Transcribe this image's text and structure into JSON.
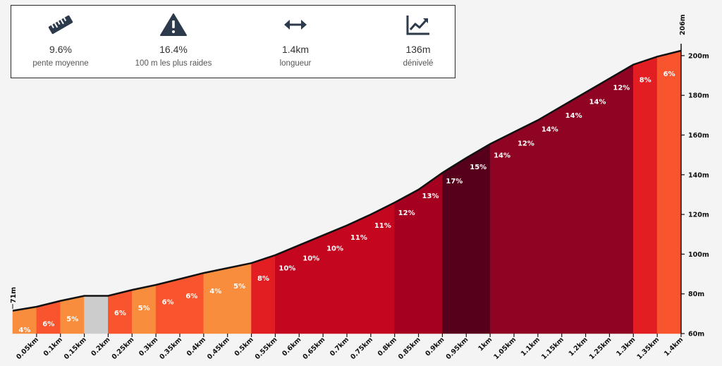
{
  "stats": [
    {
      "icon": "ruler-icon",
      "value": "9.6%",
      "label": "pente moyenne"
    },
    {
      "icon": "warning-icon",
      "value": "16.4%",
      "label": "100 m les plus raides"
    },
    {
      "icon": "horizontal-arrows-icon",
      "value": "1.4km",
      "label": "longueur"
    },
    {
      "icon": "trend-chart-icon",
      "value": "136m",
      "label": "dénivelé"
    }
  ],
  "chart_data": {
    "type": "area",
    "xlim": [
      0,
      1.4
    ],
    "ylim": [
      60,
      206
    ],
    "start_label": "71m",
    "end_label": "206m",
    "yticks": [
      {
        "value": 60,
        "label": "60m"
      },
      {
        "value": 80,
        "label": "80m"
      },
      {
        "value": 100,
        "label": "100m"
      },
      {
        "value": 120,
        "label": "120m"
      },
      {
        "value": 140,
        "label": "140m"
      },
      {
        "value": 160,
        "label": "160m"
      },
      {
        "value": 180,
        "label": "180m"
      },
      {
        "value": 200,
        "label": "200m"
      }
    ],
    "xticks": [
      "0.05km",
      "0.1km",
      "0.15km",
      "0.2km",
      "0.25km",
      "0.3km",
      "0.35km",
      "0.4km",
      "0.45km",
      "0.5km",
      "0.55km",
      "0.6km",
      "0.65km",
      "0.7km",
      "0.75km",
      "0.8km",
      "0.85km",
      "0.9km",
      "0.95km",
      "1km",
      "1.05km",
      "1.1km",
      "1.15km",
      "1.2km",
      "1.25km",
      "1.3km",
      "1.35km",
      "1.4km"
    ],
    "profile": [
      [
        0,
        71.5
      ],
      [
        0.05,
        73.5
      ],
      [
        0.1,
        76.5
      ],
      [
        0.15,
        79.0
      ],
      [
        0.2,
        79.0
      ],
      [
        0.25,
        82.0
      ],
      [
        0.3,
        84.5
      ],
      [
        0.35,
        87.5
      ],
      [
        0.4,
        90.5
      ],
      [
        0.45,
        93.0
      ],
      [
        0.5,
        95.5
      ],
      [
        0.55,
        99.5
      ],
      [
        0.6,
        104.5
      ],
      [
        0.65,
        109.5
      ],
      [
        0.7,
        114.5
      ],
      [
        0.75,
        120.0
      ],
      [
        0.8,
        126.0
      ],
      [
        0.85,
        132.5
      ],
      [
        0.9,
        141.0
      ],
      [
        0.95,
        148.5
      ],
      [
        1.0,
        155.5
      ],
      [
        1.05,
        161.5
      ],
      [
        1.1,
        167.5
      ],
      [
        1.15,
        174.5
      ],
      [
        1.2,
        181.5
      ],
      [
        1.25,
        188.5
      ],
      [
        1.3,
        195.5
      ],
      [
        1.35,
        199.5
      ],
      [
        1.4,
        202.5
      ]
    ],
    "segments": [
      {
        "label": "4%",
        "color": "#f98d3e"
      },
      {
        "label": "6%",
        "color": "#f8552e"
      },
      {
        "label": "5%",
        "color": "#f98d3e"
      },
      {
        "label": "",
        "color": "#cccccc"
      },
      {
        "label": "6%",
        "color": "#f8552e"
      },
      {
        "label": "5%",
        "color": "#f98d3e"
      },
      {
        "label": "6%",
        "color": "#f8552e"
      },
      {
        "label": "6%",
        "color": "#f8552e"
      },
      {
        "label": "4%",
        "color": "#f98d3e"
      },
      {
        "label": "5%",
        "color": "#f98d3e"
      },
      {
        "label": "8%",
        "color": "#e21e23"
      },
      {
        "label": "10%",
        "color": "#c5061f"
      },
      {
        "label": "10%",
        "color": "#c5061f"
      },
      {
        "label": "10%",
        "color": "#c5061f"
      },
      {
        "label": "11%",
        "color": "#c5061f"
      },
      {
        "label": "11%",
        "color": "#c5061f"
      },
      {
        "label": "12%",
        "color": "#a5001f"
      },
      {
        "label": "13%",
        "color": "#a5001f"
      },
      {
        "label": "17%",
        "color": "#56001c"
      },
      {
        "label": "15%",
        "color": "#56001c"
      },
      {
        "label": "14%",
        "color": "#8e0422"
      },
      {
        "label": "12%",
        "color": "#8e0422"
      },
      {
        "label": "14%",
        "color": "#8e0422"
      },
      {
        "label": "14%",
        "color": "#8e0422"
      },
      {
        "label": "14%",
        "color": "#8e0422"
      },
      {
        "label": "12%",
        "color": "#8e0422"
      },
      {
        "label": "8%",
        "color": "#e21e23"
      },
      {
        "label": "6%",
        "color": "#f8552e"
      }
    ]
  }
}
